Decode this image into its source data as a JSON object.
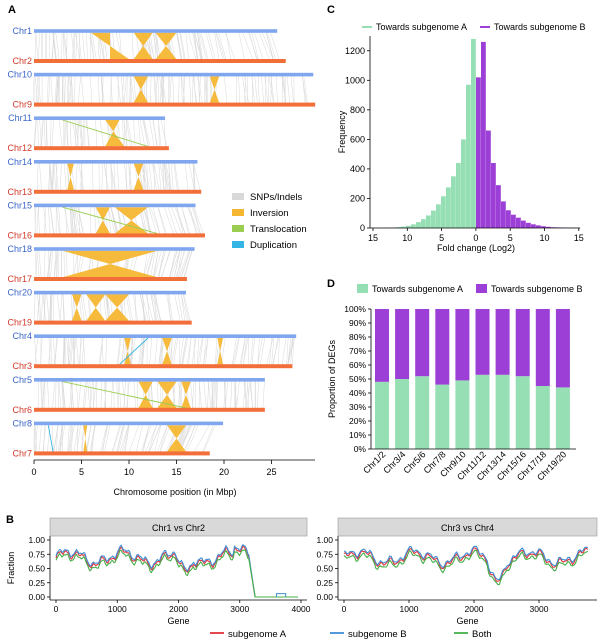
{
  "panel_letters": {
    "A": "A",
    "B": "B",
    "C": "C",
    "D": "D"
  },
  "colors": {
    "subA_chr": "#7fa6ee",
    "subB_chr": "#f26f3a",
    "label_a": "#3a66c8",
    "label_b": "#d13a2a",
    "snp": "#d9d9d9",
    "inversion": "#f5b731",
    "translocation": "#9acd50",
    "duplication": "#35b5e5",
    "hist_a": "#96dfb4",
    "hist_b": "#9c3fd6",
    "line_a": "#e2333b",
    "line_b": "#3f8fd6",
    "line_both": "#47b04a",
    "facet_strip": "#d9d9d9"
  },
  "synteny": {
    "pairs": [
      {
        "a": "Chr1",
        "b": "Chr2",
        "len_a": 25.6,
        "len_b": 26.5
      },
      {
        "a": "Chr10",
        "b": "Chr9",
        "len_a": 29.4,
        "len_b": 29.6
      },
      {
        "a": "Chr11",
        "b": "Chr12",
        "len_a": 13.8,
        "len_b": 14.2
      },
      {
        "a": "Chr14",
        "b": "Chr13",
        "len_a": 17.2,
        "len_b": 17.6
      },
      {
        "a": "Chr15",
        "b": "Chr16",
        "len_a": 17.0,
        "len_b": 18.0
      },
      {
        "a": "Chr18",
        "b": "Chr17",
        "len_a": 16.9,
        "len_b": 16.1
      },
      {
        "a": "Chr20",
        "b": "Chr19",
        "len_a": 16.0,
        "len_b": 16.6
      },
      {
        "a": "Chr4",
        "b": "Chr3",
        "len_a": 27.6,
        "len_b": 27.2
      },
      {
        "a": "Chr5",
        "b": "Chr6",
        "len_a": 24.3,
        "len_b": 24.3
      },
      {
        "a": "Chr8",
        "b": "Chr7",
        "len_a": 19.9,
        "len_b": 18.5
      }
    ],
    "inversions": [
      [
        [
          6,
          8,
          8,
          10
        ],
        [
          10.5,
          12.5,
          10.5,
          12.5
        ],
        [
          12.8,
          15,
          12.8,
          15
        ]
      ],
      [
        [
          10.5,
          12,
          10.5,
          12
        ],
        [
          18.5,
          19.5,
          18.5,
          19.5
        ]
      ],
      [
        [
          7.5,
          9,
          7.5,
          9.5
        ]
      ],
      [
        [
          3.5,
          4.2,
          3.5,
          4.2
        ],
        [
          10.5,
          11.5,
          10.5,
          11.5
        ]
      ],
      [
        [
          6.5,
          8,
          6.5,
          8
        ],
        [
          8.5,
          12,
          8.5,
          12
        ]
      ],
      [
        [
          3,
          13,
          3,
          13
        ]
      ],
      [
        [
          4,
          5,
          4,
          5
        ],
        [
          5.5,
          7.5,
          5.5,
          7.5
        ],
        [
          7.5,
          10,
          7.5,
          10
        ]
      ],
      [
        [
          13.5,
          14.5,
          13.5,
          14.5
        ],
        [
          9.5,
          10.2,
          9.5,
          10.2
        ],
        [
          19.3,
          19.9,
          19.3,
          19.9
        ]
      ],
      [
        [
          11,
          12.5,
          11,
          12.5
        ],
        [
          13,
          15,
          13,
          15
        ],
        [
          15.5,
          16.5,
          15.5,
          16.5
        ]
      ],
      [
        [
          14,
          16,
          14,
          16
        ],
        [
          5.2,
          5.6,
          5.2,
          5.6
        ]
      ]
    ],
    "translocations": [
      {
        "row": 2,
        "from": 3,
        "to": 12
      },
      {
        "row": 4,
        "from": 3,
        "to": 13
      },
      {
        "row": 8,
        "from": 3,
        "to": 16
      }
    ],
    "duplications": [
      {
        "row": 7,
        "from": 12,
        "to": 9
      },
      {
        "row": 9,
        "from": 1.5,
        "to": 2
      }
    ],
    "x_ticks": [
      0,
      5,
      10,
      15,
      20,
      25
    ],
    "xlabel": "Chromosome position (in Mbp)",
    "legend": [
      {
        "label": "SNPs/Indels",
        "key": "snp"
      },
      {
        "label": "Inversion",
        "key": "inversion"
      },
      {
        "label": "Translocation",
        "key": "translocation"
      },
      {
        "label": "Duplication",
        "key": "duplication"
      }
    ]
  },
  "chart_data": [
    {
      "type": "bar",
      "panel": "C",
      "xlabel": "Fold change (Log2)",
      "ylabel": "Frequency",
      "x_ticks": [
        15,
        10,
        5,
        0,
        5,
        10,
        15
      ],
      "y_ticks": [
        0,
        200,
        400,
        600,
        800,
        1000,
        1200
      ],
      "ylim": [
        0,
        1300
      ],
      "series": [
        {
          "name": "Towards subgenome A",
          "bins_from_center": [
            1280,
            970,
            600,
            440,
            350,
            275,
            215,
            160,
            118,
            85,
            60,
            40,
            25,
            15,
            9,
            6,
            4,
            3,
            2,
            1,
            1
          ]
        },
        {
          "name": "Towards subgenome B",
          "bins_from_center": [
            1020,
            1260,
            660,
            440,
            290,
            180,
            120,
            90,
            70,
            50,
            35,
            25,
            18,
            12,
            8,
            5,
            4,
            3,
            2,
            2,
            1
          ]
        }
      ]
    },
    {
      "type": "bar",
      "panel": "D",
      "ylabel": "Proportion of DEGs",
      "y_ticks": [
        "0%",
        "10%",
        "20%",
        "30%",
        "40%",
        "50%",
        "60%",
        "70%",
        "80%",
        "90%",
        "100%"
      ],
      "categories": [
        "Chr1/2",
        "Chr3/4",
        "Chr5/6",
        "Chr7/8",
        "Chr9/10",
        "Chr11/12",
        "Chr13/14",
        "Chr15/16",
        "Chr17/18",
        "Chr19/20"
      ],
      "series": [
        {
          "name": "Towards subgenome A",
          "values": [
            48,
            50,
            52,
            46,
            49,
            53,
            53,
            52,
            45,
            44
          ]
        },
        {
          "name": "Towards subgenome B",
          "values": [
            52,
            50,
            48,
            54,
            51,
            47,
            47,
            48,
            55,
            56
          ]
        }
      ]
    },
    {
      "type": "line",
      "panel": "B",
      "ylabel": "Fraction",
      "xlabel": "Gene",
      "y_ticks": [
        "0.00",
        "0.25",
        "0.50",
        "0.75",
        "1.00"
      ],
      "facets": [
        {
          "title": "Chr1 vs Chr2",
          "xmax": 4000,
          "x_ticks": [
            0,
            1000,
            2000,
            3000,
            4000
          ]
        },
        {
          "title": "Chr3 vs Chr4",
          "xmax": 3800,
          "x_ticks": [
            0,
            1000,
            2000,
            3000
          ]
        }
      ],
      "series_names": [
        "subgenome A",
        "subgenome B",
        "Both"
      ]
    }
  ]
}
